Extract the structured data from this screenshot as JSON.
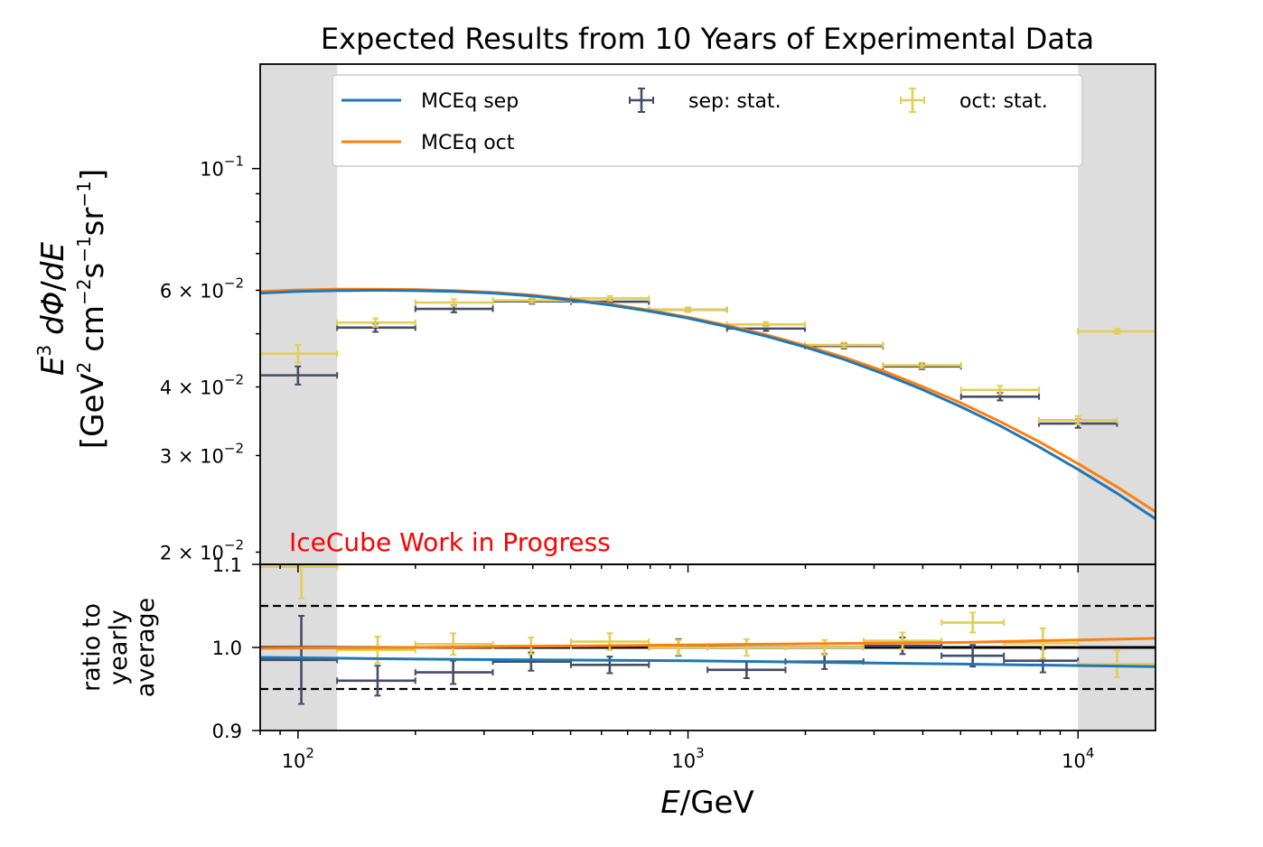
{
  "chart_data": {
    "type": "line",
    "title": "Expected Results from 10 Years of Experimental Data",
    "watermark": {
      "text": "IceCube Work in Progress",
      "color": "#ff0000"
    },
    "xlabel": "E/GeV",
    "x_scale": "log",
    "xlim": [
      80,
      15800
    ],
    "x_ticks": [
      {
        "value": 100,
        "base": "10",
        "exp": "2"
      },
      {
        "value": 1000,
        "base": "10",
        "exp": "3"
      },
      {
        "value": 10000,
        "base": "10",
        "exp": "4"
      }
    ],
    "shaded_regions": [
      {
        "x": [
          80,
          126
        ],
        "color": "#dddddd"
      },
      {
        "x": [
          10000,
          15800
        ],
        "color": "#dddddd"
      }
    ],
    "colors": {
      "sep_model": "#1f77b4",
      "oct_model": "#ff7f0e",
      "sep_data": "#454c66",
      "oct_data": "#e3cd55"
    },
    "main_panel": {
      "ylabel_line1": "E^3 dΦ/dE",
      "ylabel_line2": "[GeV^2 cm^-2 s^-1 sr^-1]",
      "y_scale": "log",
      "ylim": [
        0.019,
        0.155
      ],
      "y_ticks": [
        {
          "value": 0.1,
          "mant": "",
          "base": "10",
          "exp": "−1"
        },
        {
          "value": 0.06,
          "mant": "6 × ",
          "base": "10",
          "exp": "−2"
        },
        {
          "value": 0.04,
          "mant": "4 × ",
          "base": "10",
          "exp": "−2"
        },
        {
          "value": 0.03,
          "mant": "3 × ",
          "base": "10",
          "exp": "−2"
        },
        {
          "value": 0.02,
          "mant": "2 × ",
          "base": "10",
          "exp": "−2"
        }
      ],
      "legend": {
        "placement": "upper center",
        "entries": [
          {
            "label": "MCEq sep",
            "kind": "line",
            "color": "#1f77b4"
          },
          {
            "label": "MCEq oct",
            "kind": "line",
            "color": "#ff7f0e"
          },
          {
            "label": "sep: stat.",
            "kind": "errorbar",
            "color": "#454c66"
          },
          {
            "label": "oct: stat.",
            "kind": "errorbar",
            "color": "#e3cd55"
          }
        ]
      },
      "series": [
        {
          "name": "MCEq sep",
          "kind": "line",
          "color": "#1f77b4",
          "x": [
            80,
            100,
            126,
            158,
            200,
            251,
            316,
            398,
            501,
            631,
            794,
            1000,
            1259,
            1585,
            1995,
            2512,
            3162,
            3981,
            5012,
            6310,
            7943,
            10000,
            12589,
            15800
          ],
          "y": [
            0.0593,
            0.0597,
            0.0599,
            0.06,
            0.0599,
            0.0597,
            0.0593,
            0.0586,
            0.0576,
            0.0564,
            0.055,
            0.0534,
            0.0515,
            0.0495,
            0.0473,
            0.0449,
            0.0423,
            0.0396,
            0.0368,
            0.034,
            0.0311,
            0.0283,
            0.0256,
            0.023
          ]
        },
        {
          "name": "MCEq oct",
          "kind": "line",
          "color": "#ff7f0e",
          "x": [
            80,
            100,
            126,
            158,
            200,
            251,
            316,
            398,
            501,
            631,
            794,
            1000,
            1259,
            1585,
            1995,
            2512,
            3162,
            3981,
            5012,
            6310,
            7943,
            10000,
            12589,
            15800
          ],
          "y": [
            0.0597,
            0.0601,
            0.0603,
            0.0603,
            0.0602,
            0.0599,
            0.0595,
            0.0588,
            0.0578,
            0.0566,
            0.0552,
            0.0536,
            0.0518,
            0.0498,
            0.0476,
            0.0453,
            0.0428,
            0.0401,
            0.0374,
            0.0346,
            0.0318,
            0.029,
            0.0263,
            0.0237
          ]
        },
        {
          "name": "sep: stat.",
          "kind": "errorbar",
          "color": "#454c66",
          "points": [
            {
              "x": 100,
              "xlo": 80,
              "xhi": 126,
              "y": 0.042,
              "yerr": 0.0016
            },
            {
              "x": 158,
              "xlo": 126,
              "xhi": 200,
              "y": 0.0513,
              "yerr": 0.0009
            },
            {
              "x": 251,
              "xlo": 200,
              "xhi": 316,
              "y": 0.0555,
              "yerr": 0.0008
            },
            {
              "x": 398,
              "xlo": 316,
              "xhi": 501,
              "y": 0.0573,
              "yerr": 0.0006
            },
            {
              "x": 631,
              "xlo": 501,
              "xhi": 794,
              "y": 0.0572,
              "yerr": 0.0005
            },
            {
              "x": 1000,
              "xlo": 794,
              "xhi": 1259,
              "y": 0.0553,
              "yerr": 0.0005
            },
            {
              "x": 1585,
              "xlo": 1259,
              "xhi": 1995,
              "y": 0.0511,
              "yerr": 0.0005
            },
            {
              "x": 2512,
              "xlo": 1995,
              "xhi": 3162,
              "y": 0.0475,
              "yerr": 0.0005
            },
            {
              "x": 3981,
              "xlo": 3162,
              "xhi": 5012,
              "y": 0.0436,
              "yerr": 0.0005
            },
            {
              "x": 6310,
              "xlo": 5012,
              "xhi": 7943,
              "y": 0.0384,
              "yerr": 0.0006
            },
            {
              "x": 10000,
              "xlo": 7943,
              "xhi": 12589,
              "y": 0.0343,
              "yerr": 0.0006
            }
          ]
        },
        {
          "name": "oct: stat.",
          "kind": "errorbar",
          "color": "#e3cd55",
          "points": [
            {
              "x": 100,
              "xlo": 80,
              "xhi": 126,
              "y": 0.046,
              "yerr": 0.0017
            },
            {
              "x": 158,
              "xlo": 126,
              "xhi": 200,
              "y": 0.0524,
              "yerr": 0.0009
            },
            {
              "x": 251,
              "xlo": 200,
              "xhi": 316,
              "y": 0.057,
              "yerr": 0.0008
            },
            {
              "x": 398,
              "xlo": 316,
              "xhi": 501,
              "y": 0.0575,
              "yerr": 0.0006
            },
            {
              "x": 631,
              "xlo": 501,
              "xhi": 794,
              "y": 0.058,
              "yerr": 0.0006
            },
            {
              "x": 1000,
              "xlo": 794,
              "xhi": 1259,
              "y": 0.0553,
              "yerr": 0.0005
            },
            {
              "x": 1585,
              "xlo": 1259,
              "xhi": 1995,
              "y": 0.052,
              "yerr": 0.0005
            },
            {
              "x": 2512,
              "xlo": 1995,
              "xhi": 3162,
              "y": 0.0477,
              "yerr": 0.0005
            },
            {
              "x": 3981,
              "xlo": 3162,
              "xhi": 5012,
              "y": 0.0438,
              "yerr": 0.0005
            },
            {
              "x": 6310,
              "xlo": 5012,
              "xhi": 7943,
              "y": 0.0395,
              "yerr": 0.0007
            },
            {
              "x": 10000,
              "xlo": 7943,
              "xhi": 12589,
              "y": 0.0348,
              "yerr": 0.0006
            },
            {
              "x": 12600,
              "xlo": 10000,
              "xhi": 15800,
              "y": 0.0505,
              "yerr": 0.0005
            }
          ]
        }
      ]
    },
    "ratio_panel": {
      "ylabel_lines": [
        "ratio to",
        "yearly",
        "average"
      ],
      "ylim": [
        0.9,
        1.1
      ],
      "y_ticks": [
        {
          "value": 0.9,
          "label": "0.9"
        },
        {
          "value": 1.0,
          "label": "1.0"
        },
        {
          "value": 1.1,
          "label": "1.1"
        }
      ],
      "reference_lines": [
        {
          "y": 1.0,
          "style": "solid"
        },
        {
          "y": 1.05,
          "style": "dashed"
        },
        {
          "y": 0.95,
          "style": "dashed"
        }
      ],
      "series": [
        {
          "name": "MCEq sep",
          "kind": "line",
          "color": "#1f77b4",
          "x": [
            80,
            200,
            1000,
            5000,
            15800
          ],
          "y": [
            0.988,
            0.986,
            0.984,
            0.98,
            0.977
          ]
        },
        {
          "name": "MCEq oct",
          "kind": "line",
          "color": "#ff7f0e",
          "x": [
            80,
            200,
            1000,
            5000,
            15800
          ],
          "y": [
            0.999,
            1.0,
            1.003,
            1.006,
            1.011
          ]
        },
        {
          "name": "sep: stat.",
          "kind": "errorbar",
          "color": "#454c66",
          "points": [
            {
              "x": 102,
              "xlo": 80,
              "xhi": 126,
              "y": 0.985,
              "yerr": 0.053
            },
            {
              "x": 160,
              "xlo": 126,
              "xhi": 200,
              "y": 0.96,
              "yerr": 0.018
            },
            {
              "x": 250,
              "xlo": 200,
              "xhi": 316,
              "y": 0.97,
              "yerr": 0.014
            },
            {
              "x": 396,
              "xlo": 316,
              "xhi": 501,
              "y": 0.983,
              "yerr": 0.011
            },
            {
              "x": 630,
              "xlo": 501,
              "xhi": 794,
              "y": 0.979,
              "yerr": 0.01
            },
            {
              "x": 945,
              "xlo": 794,
              "xhi": 1122,
              "y": 1.0,
              "yerr": 0.01
            },
            {
              "x": 1413,
              "xlo": 1122,
              "xhi": 1778,
              "y": 0.973,
              "yerr": 0.01
            },
            {
              "x": 2239,
              "xlo": 1778,
              "xhi": 2818,
              "y": 0.983,
              "yerr": 0.009
            },
            {
              "x": 3548,
              "xlo": 2818,
              "xhi": 4467,
              "y": 1.002,
              "yerr": 0.01
            },
            {
              "x": 5370,
              "xlo": 4467,
              "xhi": 6457,
              "y": 0.99,
              "yerr": 0.013
            },
            {
              "x": 8128,
              "xlo": 6457,
              "xhi": 10000,
              "y": 0.984,
              "yerr": 0.014
            }
          ]
        },
        {
          "name": "oct: stat.",
          "kind": "errorbar",
          "color": "#e3cd55",
          "points": [
            {
              "x": 102,
              "xlo": 80,
              "xhi": 126,
              "y": 1.097,
              "yerr": 0.038
            },
            {
              "x": 160,
              "xlo": 126,
              "xhi": 200,
              "y": 0.997,
              "yerr": 0.016
            },
            {
              "x": 250,
              "xlo": 200,
              "xhi": 316,
              "y": 1.004,
              "yerr": 0.013
            },
            {
              "x": 396,
              "xlo": 316,
              "xhi": 501,
              "y": 1.002,
              "yerr": 0.01
            },
            {
              "x": 630,
              "xlo": 501,
              "xhi": 794,
              "y": 1.007,
              "yerr": 0.01
            },
            {
              "x": 945,
              "xlo": 794,
              "xhi": 1122,
              "y": 1.0,
              "yerr": 0.009
            },
            {
              "x": 1413,
              "xlo": 1122,
              "xhi": 1778,
              "y": 1.0,
              "yerr": 0.01
            },
            {
              "x": 2239,
              "xlo": 1778,
              "xhi": 2818,
              "y": 1.0,
              "yerr": 0.009
            },
            {
              "x": 3548,
              "xlo": 2818,
              "xhi": 4467,
              "y": 1.008,
              "yerr": 0.01
            },
            {
              "x": 5370,
              "xlo": 4467,
              "xhi": 6457,
              "y": 1.03,
              "yerr": 0.012
            },
            {
              "x": 8128,
              "xlo": 6457,
              "xhi": 10000,
              "y": 1.005,
              "yerr": 0.018
            },
            {
              "x": 12589,
              "xlo": 10000,
              "xhi": 15800,
              "y": 0.98,
              "yerr": 0.016
            }
          ]
        }
      ]
    }
  }
}
